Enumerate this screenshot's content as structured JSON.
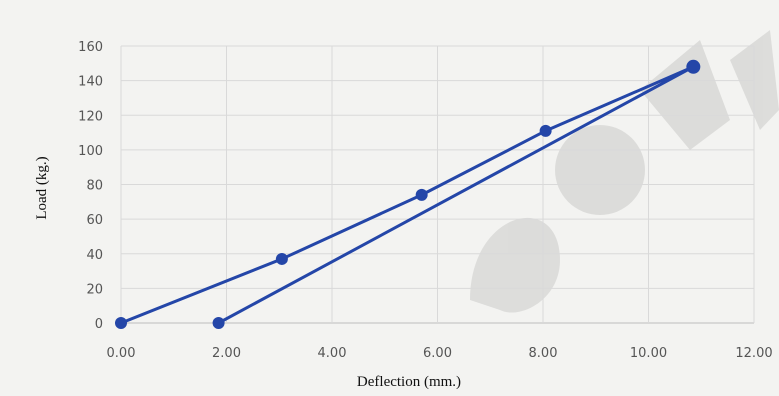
{
  "chart_data": {
    "type": "line",
    "title": "",
    "xlabel": "Deflection (mm.)",
    "ylabel": "Load (kg.)",
    "xlim": [
      0,
      12
    ],
    "ylim": [
      0,
      160
    ],
    "x_ticks": [
      "0.00",
      "2.00",
      "4.00",
      "6.00",
      "8.00",
      "10.00",
      "12.00"
    ],
    "y_ticks": [
      "0",
      "20",
      "40",
      "60",
      "80",
      "100",
      "120",
      "140",
      "160"
    ],
    "grid": true,
    "legend": "none",
    "series": [
      {
        "color": "#2446a8",
        "points": [
          {
            "x": 0.0,
            "y": 0
          },
          {
            "x": 3.05,
            "y": 37
          },
          {
            "x": 5.7,
            "y": 74
          },
          {
            "x": 8.05,
            "y": 111
          },
          {
            "x": 10.85,
            "y": 148
          },
          {
            "x": 1.85,
            "y": 0
          }
        ]
      }
    ]
  }
}
